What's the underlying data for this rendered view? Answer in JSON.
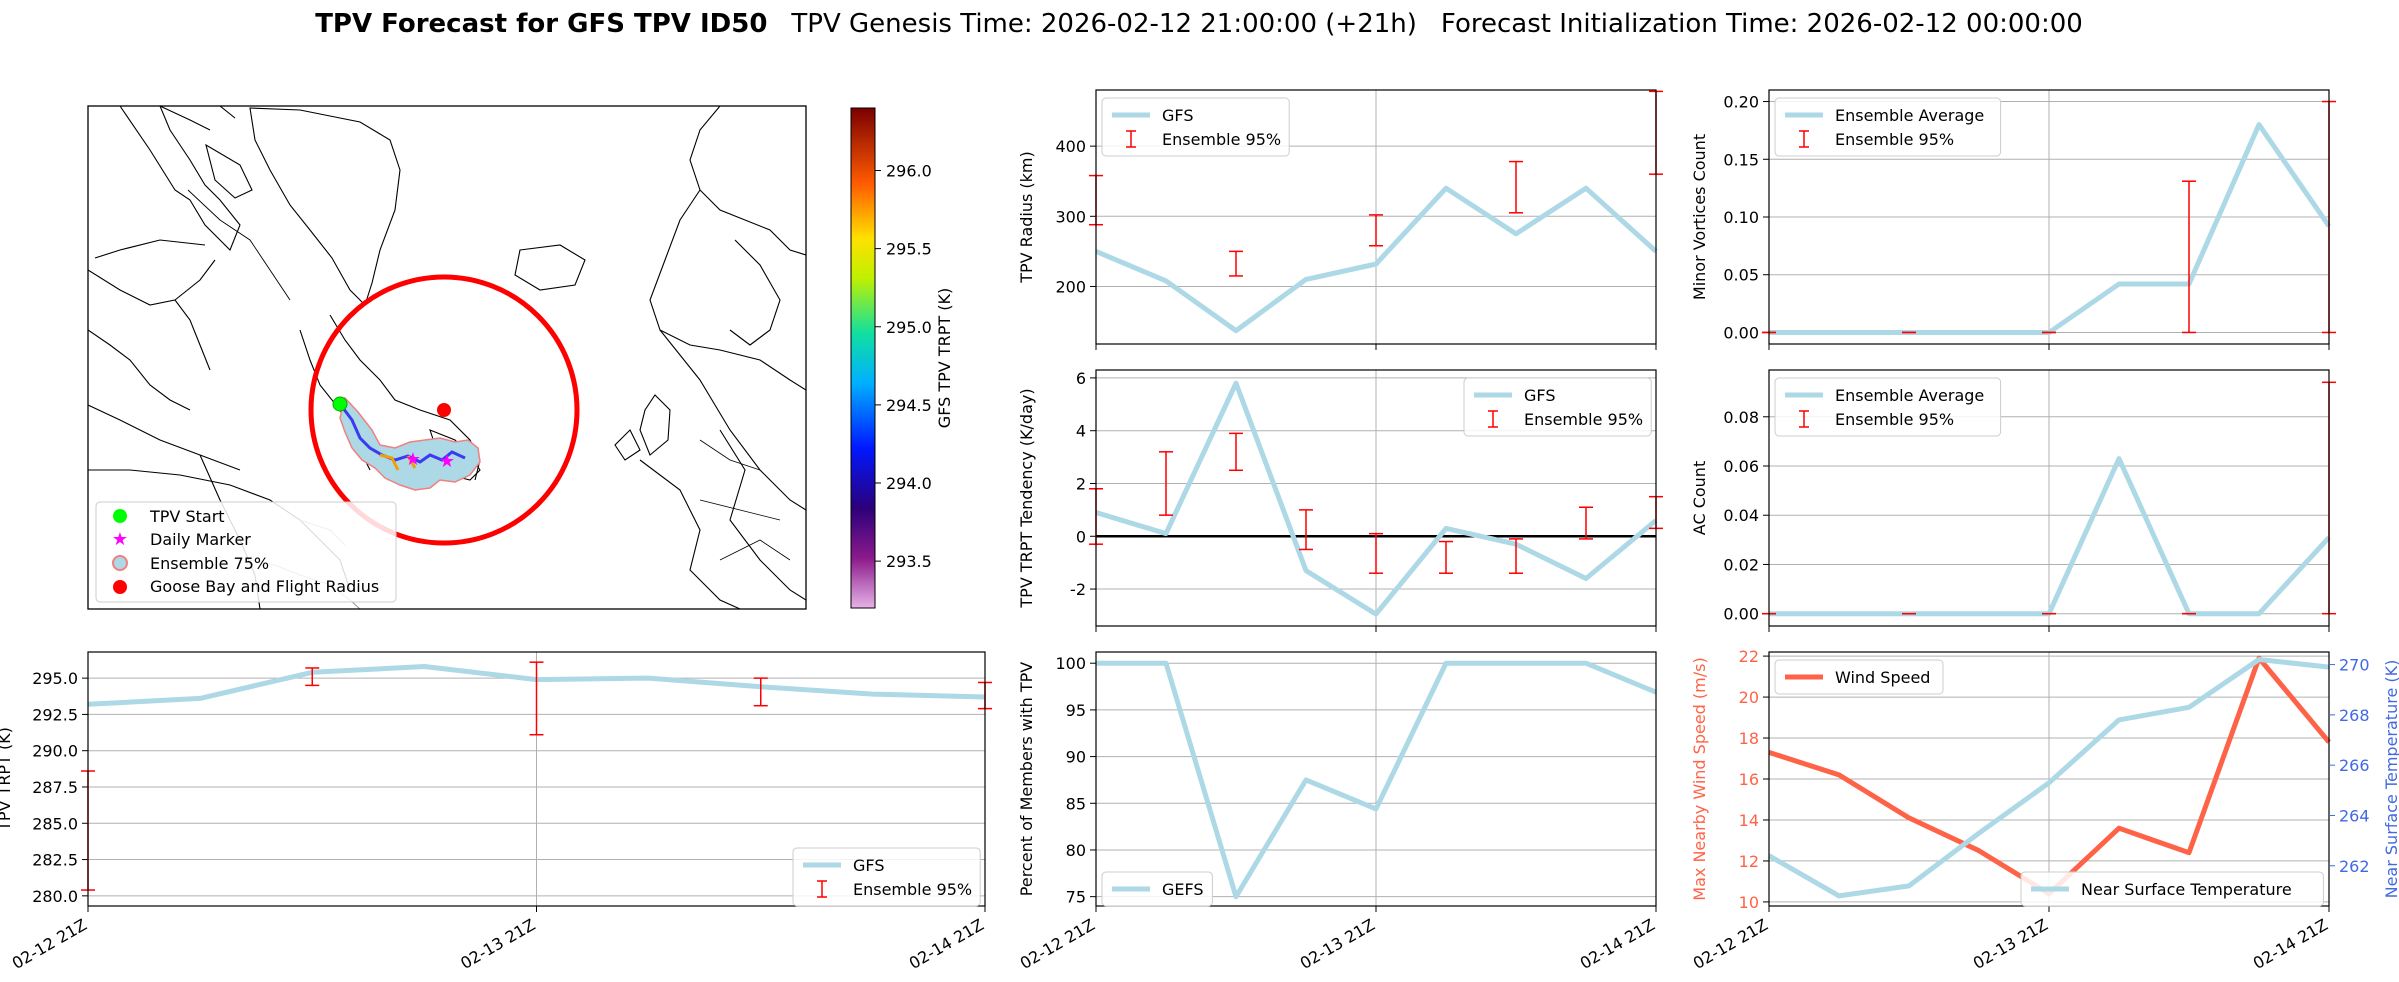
{
  "header": {
    "title_bold": "TPV Forecast for GFS TPV ID50",
    "genesis": "TPV Genesis Time: 2026-02-12 21:00:00 (+21h)",
    "init": "Forecast Initialization Time: 2026-02-12 00:00:00"
  },
  "colors": {
    "gfs_line": "#add8e6",
    "ensemble_bar": "#ff0000",
    "wind_line": "#ff6347",
    "temp_axis": "#4169e1",
    "tpv_start": "#00ff00",
    "daily_marker": "#ff00ff",
    "goose_bay": "#ff0000",
    "ens75_fill": "#add8e6",
    "ens75_edge": "#f08080"
  },
  "map": {
    "colorbar_label": "GFS TPV TRPT (K)",
    "colorbar_ticks": [
      "293.5",
      "294.0",
      "294.5",
      "295.0",
      "295.5",
      "296.0"
    ],
    "colorbar_tick_values": [
      293.5,
      294.0,
      294.5,
      295.0,
      295.5,
      296.0
    ],
    "colorbar_range": [
      293.2,
      296.4
    ],
    "legend": [
      {
        "key": "tpv_start",
        "label": "TPV Start",
        "marker": "circle-icon"
      },
      {
        "key": "daily",
        "label": "Daily Marker",
        "marker": "star-icon"
      },
      {
        "key": "ens75",
        "label": "Ensemble 75%",
        "marker": "ensemble-patch-icon"
      },
      {
        "key": "goose",
        "label": "Goose Bay and Flight Radius",
        "marker": "circle-icon"
      }
    ]
  },
  "chart_data": [
    {
      "id": "radius",
      "type": "line",
      "x": [
        0,
        0.25,
        0.5,
        0.75,
        1,
        1.25,
        1.5,
        1.75,
        2
      ],
      "series": [
        {
          "name": "GFS",
          "values": [
            250,
            208,
            137,
            210,
            232,
            340,
            275,
            340,
            250
          ]
        }
      ],
      "errorbars": [
        {
          "x": 0,
          "lo": 288,
          "hi": 358
        },
        {
          "x": 0.5,
          "lo": 215,
          "hi": 250
        },
        {
          "x": 1,
          "lo": 258,
          "hi": 302
        },
        {
          "x": 1.5,
          "lo": 305,
          "hi": 378
        },
        {
          "x": 2,
          "lo": 360,
          "hi": 478
        }
      ],
      "ylabel": "TPV Radius (km)",
      "ylim": [
        118,
        480
      ],
      "yticks": [
        200,
        300,
        400
      ],
      "legend": [
        "GFS",
        "Ensemble 95%"
      ],
      "legend_loc": "upper-left"
    },
    {
      "id": "minor",
      "type": "line",
      "x": [
        0,
        0.25,
        0.5,
        0.75,
        1,
        1.25,
        1.5,
        1.75,
        2
      ],
      "series": [
        {
          "name": "Ensemble Average",
          "values": [
            0,
            0,
            0,
            0,
            0,
            0.042,
            0.042,
            0.18,
            0.092
          ]
        }
      ],
      "errorbars": [
        {
          "x": 0,
          "lo": 0,
          "hi": 0
        },
        {
          "x": 0.5,
          "lo": 0,
          "hi": 0
        },
        {
          "x": 1,
          "lo": 0,
          "hi": 0
        },
        {
          "x": 1.5,
          "lo": 0,
          "hi": 0.131
        },
        {
          "x": 2,
          "lo": 0,
          "hi": 0.2
        }
      ],
      "ylabel": "Minor Vortices Count",
      "ylim": [
        -0.01,
        0.21
      ],
      "yticks": [
        0.0,
        0.05,
        0.1,
        0.15,
        0.2
      ],
      "ytick_labels": [
        "0.00",
        "0.05",
        "0.10",
        "0.15",
        "0.20"
      ],
      "legend": [
        "Ensemble Average",
        "Ensemble 95%"
      ],
      "legend_loc": "upper-left"
    },
    {
      "id": "tendency",
      "type": "line",
      "x": [
        0,
        0.25,
        0.5,
        0.75,
        1,
        1.25,
        1.5,
        1.75,
        2
      ],
      "series": [
        {
          "name": "GFS",
          "values": [
            0.9,
            0.1,
            5.8,
            -1.3,
            -2.95,
            0.3,
            -0.3,
            -1.6,
            0.6
          ]
        }
      ],
      "errorbars": [
        {
          "x": 0,
          "lo": -0.3,
          "hi": 1.8
        },
        {
          "x": 0.25,
          "lo": 0.8,
          "hi": 3.2
        },
        {
          "x": 0.5,
          "lo": 2.5,
          "hi": 3.9
        },
        {
          "x": 0.75,
          "lo": -0.5,
          "hi": 1.0
        },
        {
          "x": 1,
          "lo": -1.4,
          "hi": 0.1
        },
        {
          "x": 1.25,
          "lo": -1.4,
          "hi": -0.2
        },
        {
          "x": 1.5,
          "lo": -1.4,
          "hi": -0.1
        },
        {
          "x": 1.75,
          "lo": -0.1,
          "hi": 1.1
        },
        {
          "x": 2,
          "lo": 0.3,
          "hi": 1.5
        }
      ],
      "zero_line": true,
      "ylabel": "TPV TRPT Tendency (K/day)",
      "ylim": [
        -3.4,
        6.3
      ],
      "yticks": [
        -2,
        0,
        2,
        4,
        6
      ],
      "legend": [
        "GFS",
        "Ensemble 95%"
      ],
      "legend_loc": "upper-right"
    },
    {
      "id": "ac",
      "type": "line",
      "x": [
        0,
        0.25,
        0.5,
        0.75,
        1,
        1.25,
        1.5,
        1.75,
        2
      ],
      "series": [
        {
          "name": "Ensemble Average",
          "values": [
            0,
            0,
            0,
            0,
            0,
            0.063,
            0,
            0,
            0.031
          ]
        }
      ],
      "errorbars": [
        {
          "x": 0,
          "lo": 0,
          "hi": 0
        },
        {
          "x": 0.5,
          "lo": 0,
          "hi": 0
        },
        {
          "x": 1,
          "lo": 0,
          "hi": 0
        },
        {
          "x": 1.5,
          "lo": 0,
          "hi": 0
        },
        {
          "x": 2,
          "lo": 0,
          "hi": 0.094
        }
      ],
      "ylabel": "AC Count",
      "ylim": [
        -0.005,
        0.099
      ],
      "yticks": [
        0.0,
        0.02,
        0.04,
        0.06,
        0.08
      ],
      "ytick_labels": [
        "0.00",
        "0.02",
        "0.04",
        "0.06",
        "0.08"
      ],
      "legend": [
        "Ensemble Average",
        "Ensemble 95%"
      ],
      "legend_loc": "upper-left"
    },
    {
      "id": "trpt",
      "type": "line",
      "x": [
        0,
        0.25,
        0.5,
        0.75,
        1,
        1.25,
        1.5,
        1.75,
        2
      ],
      "series": [
        {
          "name": "GFS",
          "values": [
            293.2,
            293.6,
            295.4,
            295.8,
            294.9,
            295.0,
            294.4,
            293.9,
            293.7
          ]
        }
      ],
      "errorbars": [
        {
          "x": 0,
          "lo": 280.4,
          "hi": 288.6
        },
        {
          "x": 0.5,
          "lo": 294.5,
          "hi": 295.7
        },
        {
          "x": 1,
          "lo": 291.1,
          "hi": 296.1
        },
        {
          "x": 1.5,
          "lo": 293.1,
          "hi": 295.0
        },
        {
          "x": 2,
          "lo": 292.9,
          "hi": 294.7
        }
      ],
      "ylabel": "TPV TRPT (K)",
      "ylim": [
        279.3,
        296.8
      ],
      "yticks": [
        280,
        282.5,
        285,
        287.5,
        290,
        292.5,
        295
      ],
      "ytick_labels": [
        "280.0",
        "282.5",
        "285.0",
        "287.5",
        "290.0",
        "292.5",
        "295.0"
      ],
      "xticks": [
        "02-12 21Z",
        "02-13 21Z",
        "02-14 21Z"
      ],
      "legend": [
        "GFS",
        "Ensemble 95%"
      ],
      "legend_loc": "lower-right"
    },
    {
      "id": "members",
      "type": "line",
      "x": [
        0,
        0.25,
        0.5,
        0.75,
        1,
        1.25,
        1.5,
        1.75,
        2
      ],
      "series": [
        {
          "name": "GEFS",
          "values": [
            100,
            100,
            75,
            87.5,
            84.4,
            100,
            100,
            100,
            96.9
          ]
        }
      ],
      "ylabel": "Percent of Members with TPV",
      "ylim": [
        74,
        101.2
      ],
      "yticks": [
        75,
        80,
        85,
        90,
        95,
        100
      ],
      "xticks": [
        "02-12 21Z",
        "02-13 21Z",
        "02-14 21Z"
      ],
      "legend": [
        "GEFS"
      ],
      "legend_loc": "lower-left"
    },
    {
      "id": "wind",
      "type": "line",
      "x": [
        0,
        0.25,
        0.5,
        0.75,
        1,
        1.25,
        1.5,
        1.75,
        2
      ],
      "series": [
        {
          "name": "Wind Speed",
          "axis": "left",
          "values": [
            17.3,
            16.2,
            14.1,
            12.5,
            10.4,
            13.6,
            12.4,
            21.9,
            17.8
          ]
        },
        {
          "name": "Near Surface Temperature",
          "axis": "right",
          "values": [
            262.4,
            260.8,
            261.2,
            263.3,
            265.3,
            267.8,
            268.3,
            270.2,
            269.9
          ]
        }
      ],
      "ylabel": "Max Nearby Wind Speed (m/s)",
      "ylim": [
        9.8,
        22.2
      ],
      "yticks": [
        10,
        12,
        14,
        16,
        18,
        20,
        22
      ],
      "y2label": "Near Surface Temperature (K)",
      "y2lim": [
        260.4,
        270.5
      ],
      "y2ticks": [
        262,
        264,
        266,
        268,
        270
      ],
      "xticks": [
        "02-12 21Z",
        "02-13 21Z",
        "02-14 21Z"
      ],
      "legend": [
        "Wind Speed",
        "Near Surface Temperature"
      ],
      "legend_loc": "upper-left / lower-right"
    }
  ]
}
